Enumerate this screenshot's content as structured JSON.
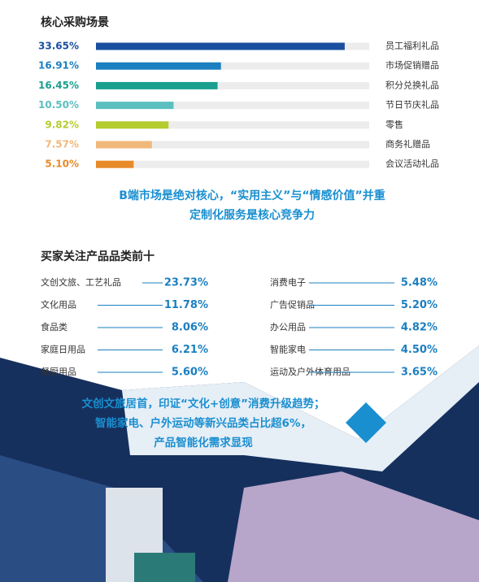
{
  "chart_data": {
    "type": "bar",
    "orientation": "horizontal",
    "title": "核心采购场景",
    "categories": [
      "员工福利礼品",
      "市场促销赠品",
      "积分兑换礼品",
      "节日节庆礼品",
      "零售",
      "商务礼赠品",
      "会议活动礼品"
    ],
    "values": [
      33.65,
      16.91,
      16.45,
      10.5,
      9.82,
      7.57,
      5.1
    ],
    "value_labels": [
      "33.65%",
      "16.91%",
      "16.45%",
      "10.50%",
      "9.82%",
      "7.57%",
      "5.10%"
    ],
    "colors": [
      "#1a4fa0",
      "#1b7fc0",
      "#1a9e8e",
      "#5bbfc0",
      "#b5cc2e",
      "#f0b87a",
      "#e88a2a"
    ]
  },
  "headline": [
    "B端市场是绝对核心，“实用主义”与“情感价值”并重",
    "定制化服务是核心竞争力"
  ],
  "list_section": {
    "title": "买家关注产品品类前十",
    "left": [
      {
        "name": "文创文旅、工艺礼品",
        "value": "23.73%"
      },
      {
        "name": "文化用品",
        "value": "11.78%"
      },
      {
        "name": "食品类",
        "value": "8.06%"
      },
      {
        "name": "家庭日用品",
        "value": "6.21%"
      },
      {
        "name": "餐厨用品",
        "value": "5.60%"
      }
    ],
    "right": [
      {
        "name": "消费电子",
        "value": "5.48%"
      },
      {
        "name": "广告促销品",
        "value": "5.20%"
      },
      {
        "name": "办公用品",
        "value": "4.82%"
      },
      {
        "name": "智能家电",
        "value": "4.50%"
      },
      {
        "name": "运动及户外体育用品",
        "value": "3.65%"
      }
    ]
  },
  "closing": [
    "文创文旅居首，印证“文化+创意”消费升级趋势；",
    "智能家电、户外运动等新兴品类占比超6%，",
    "产品智能化需求显现"
  ]
}
